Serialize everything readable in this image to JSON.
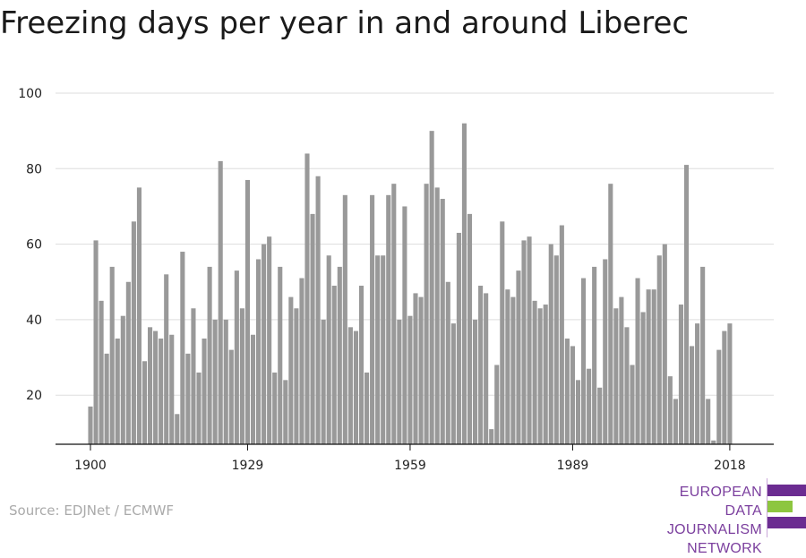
{
  "title": "Freezing days per year in and around Liberec",
  "source": "Source: EDJNet / ECMWF",
  "logo": {
    "line1": "EUROPEAN",
    "line2": "DATA JOURNALISM",
    "line3": "NETWORK",
    "colors": [
      "#6b2c91",
      "#8dc63f",
      "#6b2c91"
    ]
  },
  "chart_data": {
    "type": "bar",
    "title": "Freezing days per year in and around Liberec",
    "xlabel": "",
    "ylabel": "",
    "ylim": [
      7,
      100
    ],
    "yticks": [
      20,
      40,
      60,
      80,
      100
    ],
    "xtick_labels": [
      "1900",
      "1929",
      "1959",
      "1989",
      "2018"
    ],
    "bar_color": "#999999",
    "grid": true,
    "categories": [
      1900,
      1901,
      1902,
      1903,
      1904,
      1905,
      1906,
      1907,
      1908,
      1909,
      1910,
      1911,
      1912,
      1913,
      1914,
      1915,
      1916,
      1917,
      1918,
      1919,
      1920,
      1921,
      1922,
      1923,
      1924,
      1925,
      1926,
      1927,
      1928,
      1929,
      1930,
      1931,
      1932,
      1933,
      1934,
      1935,
      1936,
      1937,
      1938,
      1939,
      1940,
      1941,
      1942,
      1943,
      1944,
      1945,
      1946,
      1947,
      1948,
      1949,
      1950,
      1951,
      1952,
      1953,
      1954,
      1955,
      1956,
      1957,
      1958,
      1959,
      1960,
      1961,
      1962,
      1963,
      1964,
      1965,
      1966,
      1967,
      1968,
      1969,
      1970,
      1971,
      1972,
      1973,
      1974,
      1975,
      1976,
      1977,
      1978,
      1979,
      1980,
      1981,
      1982,
      1983,
      1984,
      1985,
      1986,
      1987,
      1988,
      1989,
      1990,
      1991,
      1992,
      1993,
      1994,
      1995,
      1996,
      1997,
      1998,
      1999,
      2000,
      2001,
      2002,
      2003,
      2004,
      2005,
      2006,
      2007,
      2008,
      2009,
      2010,
      2011,
      2012,
      2013,
      2014,
      2015,
      2016,
      2017,
      2018
    ],
    "values": [
      17,
      61,
      45,
      31,
      54,
      35,
      41,
      50,
      66,
      75,
      29,
      38,
      37,
      35,
      52,
      36,
      15,
      58,
      31,
      43,
      26,
      35,
      54,
      40,
      82,
      40,
      32,
      53,
      43,
      77,
      36,
      56,
      60,
      62,
      26,
      54,
      24,
      46,
      43,
      51,
      84,
      68,
      78,
      40,
      57,
      49,
      54,
      73,
      38,
      37,
      49,
      26,
      73,
      57,
      57,
      73,
      76,
      40,
      70,
      41,
      47,
      46,
      76,
      90,
      75,
      72,
      50,
      39,
      63,
      92,
      68,
      40,
      49,
      47,
      11,
      28,
      66,
      48,
      46,
      53,
      61,
      62,
      45,
      43,
      44,
      60,
      57,
      65,
      35,
      33,
      24,
      51,
      27,
      54,
      22,
      56,
      76,
      43,
      46,
      38,
      28,
      51,
      42,
      48,
      48,
      57,
      60,
      25,
      19,
      44,
      81,
      33,
      39,
      54,
      19,
      8,
      32,
      37,
      39
    ]
  }
}
